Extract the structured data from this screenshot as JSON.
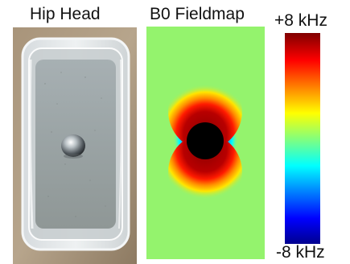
{
  "panels": {
    "photo": {
      "title": "Hip Head"
    },
    "fieldmap": {
      "title": "B0 Fieldmap"
    }
  },
  "colorbar": {
    "max_label": "+8 kHz",
    "min_label": "-8 kHz",
    "colormap": "jet",
    "colors": [
      "#00008f",
      "#0000ff",
      "#00ffff",
      "#ffff00",
      "#ff0000",
      "#800000"
    ]
  },
  "fieldmap": {
    "background_color": "#94f36d",
    "object_color": "#000000"
  }
}
